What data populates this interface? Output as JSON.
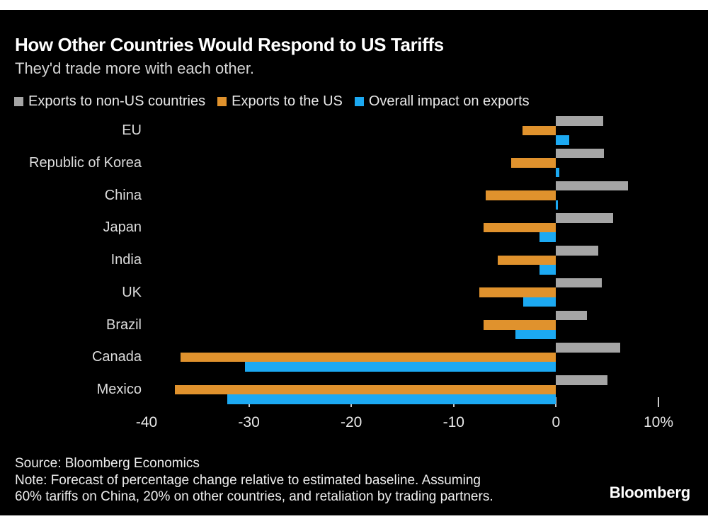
{
  "header": {
    "title": "How Other Countries Would Respond to US Tariffs",
    "subtitle": "They'd trade more with each other."
  },
  "chart_data": {
    "type": "bar",
    "orientation": "horizontal",
    "categories": [
      "EU",
      "Republic of Korea",
      "China",
      "Japan",
      "India",
      "UK",
      "Brazil",
      "Canada",
      "Mexico"
    ],
    "series": [
      {
        "key": "exports-non-us",
        "name": "Exports to non-US countries",
        "color": "#A5A5A5",
        "values": [
          4.6,
          4.7,
          7.0,
          5.6,
          4.1,
          4.5,
          3.0,
          6.3,
          5.0
        ]
      },
      {
        "key": "exports-us",
        "name": "Exports to the US",
        "color": "#E0922D",
        "values": [
          -3.3,
          -4.4,
          -6.9,
          -7.1,
          -5.7,
          -7.5,
          -7.1,
          -36.7,
          -37.2
        ]
      },
      {
        "key": "overall-impact",
        "name": "Overall impact on exports",
        "color": "#1CA9F2",
        "values": [
          1.3,
          0.3,
          0.2,
          -1.6,
          -1.6,
          -3.2,
          -4.0,
          -30.4,
          -32.1
        ]
      }
    ],
    "xlim": [
      -40,
      10
    ],
    "xticks": [
      {
        "value": -40,
        "label": "-40",
        "tick_visible": false
      },
      {
        "value": -30,
        "label": "-30",
        "tick_visible": true
      },
      {
        "value": -20,
        "label": "-20",
        "tick_visible": true
      },
      {
        "value": -10,
        "label": "-10",
        "tick_visible": true
      },
      {
        "value": 0,
        "label": "0",
        "tick_visible": true
      },
      {
        "value": 10,
        "label": "10%",
        "tick_visible": true
      }
    ],
    "legend_position": "top",
    "grid": false
  },
  "footer": {
    "source": "Source: Bloomberg Economics",
    "note_line1": "Note: Forecast of percentage change relative to estimated baseline. Assuming",
    "note_line2": "60% tariffs on China, 20% on other countries, and retaliation by trading partners.",
    "brand": "Bloomberg"
  },
  "colors": {
    "background": "#000000",
    "frame_strips": "#FFFFFF",
    "title": "#FFFFFF",
    "subtitle": "#D6D6D6",
    "axis_text": "#E9E9E9",
    "tick": "#C9C9C9"
  }
}
